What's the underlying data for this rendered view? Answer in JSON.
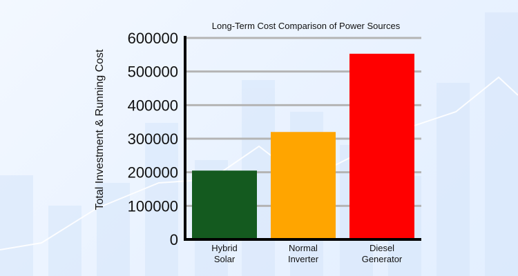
{
  "chart_data": {
    "type": "bar",
    "title": "Long-Term Cost Comparison of Power Sources",
    "xlabel": "",
    "ylabel": "Total Investment & Running Cost",
    "categories": [
      [
        "Hybrid",
        "Solar"
      ],
      [
        "Normal",
        "Inverter"
      ],
      [
        "Diesel",
        "Generator"
      ]
    ],
    "values": [
      205000,
      320000,
      553000
    ],
    "bar_colors": [
      "#145a1f",
      "#ffa500",
      "#ff0000"
    ],
    "ylim": [
      0,
      600000
    ],
    "yticks": [
      0,
      100000,
      200000,
      300000,
      400000,
      500000,
      600000
    ],
    "ytick_labels": [
      "0",
      "100000",
      "200000",
      "300000",
      "400000",
      "500000",
      "600000"
    ],
    "grid": true,
    "legend": "none"
  }
}
